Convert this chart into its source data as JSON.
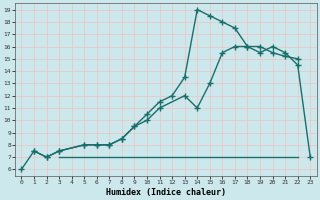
{
  "xlabel": "Humidex (Indice chaleur)",
  "bg_color": "#cce8ec",
  "grid_color": "#e8c8c8",
  "line_color": "#1a6e6a",
  "xlim": [
    -0.5,
    23.5
  ],
  "ylim": [
    5.5,
    19.5
  ],
  "xticks": [
    0,
    1,
    2,
    3,
    4,
    5,
    6,
    7,
    8,
    9,
    10,
    11,
    12,
    13,
    14,
    15,
    16,
    17,
    18,
    19,
    20,
    21,
    22,
    23
  ],
  "yticks": [
    6,
    7,
    8,
    9,
    10,
    11,
    12,
    13,
    14,
    15,
    16,
    17,
    18,
    19
  ],
  "line1_x": [
    0,
    1,
    2,
    3,
    5,
    6,
    7,
    8,
    9,
    10,
    11,
    12,
    13,
    14,
    15,
    16,
    17,
    18,
    19,
    20,
    21,
    22,
    23
  ],
  "line1_y": [
    6,
    7.5,
    7,
    7.5,
    8,
    8,
    8,
    8.5,
    9.5,
    10.5,
    11.5,
    12,
    13.5,
    19,
    18.5,
    18,
    17.5,
    16,
    15.5,
    16,
    15.5,
    14.5,
    7
  ],
  "line2_x": [
    1,
    2,
    3,
    5,
    6,
    7,
    8,
    9,
    10,
    11,
    13,
    14,
    15,
    16,
    17,
    18,
    19,
    20,
    21,
    22
  ],
  "line2_y": [
    7.5,
    7,
    7.5,
    8,
    8,
    8,
    8.5,
    9.5,
    10,
    11,
    12,
    11,
    13,
    15.5,
    16,
    16,
    16,
    15.5,
    15.2,
    15
  ],
  "line3_x": [
    3,
    14.5,
    22
  ],
  "line3_y": [
    7,
    7,
    7
  ]
}
